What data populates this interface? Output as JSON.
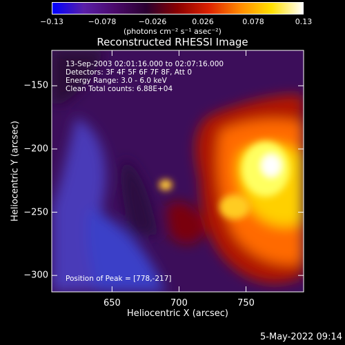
{
  "chart_data": {
    "type": "heatmap",
    "title": "Reconstructed RHESSI Image",
    "xlabel": "Heliocentric X (arcsec)",
    "ylabel": "Heliocentric Y (arcsec)",
    "xlim": [
      605,
      793
    ],
    "ylim": [
      -313,
      -122
    ],
    "xticks": [
      "650",
      "700",
      "750"
    ],
    "xtick_values": [
      650,
      700,
      750
    ],
    "yticks": [
      "-150",
      "-200",
      "-250",
      "-300"
    ],
    "ytick_values": [
      -150,
      -200,
      -250,
      -300
    ],
    "colorbar": {
      "min": -0.13,
      "max": 0.13,
      "tick_labels": [
        "-0.13",
        "-0.078",
        "-0.026",
        "0.026",
        "0.078",
        "0.13"
      ],
      "tick_values": [
        -0.13,
        -0.078,
        -0.026,
        0.026,
        0.078,
        0.13
      ],
      "label": "(photons cm⁻² s⁻¹ asec⁻²)",
      "colors": [
        "#0000ff",
        "#5a1fa8",
        "#4a0a6a",
        "#2a0030",
        "#8a0000",
        "#dd2200",
        "#ff8a00",
        "#ffe000",
        "#ffffff"
      ]
    },
    "annotations": {
      "time": "13-Sep-2003 02:01:16.000 to 02:07:16.000",
      "detectors": "Detectors: 3F 4F 5F 6F 7F 8F, Att 0",
      "energy": "Energy Range: 3.0 - 6.0 keV",
      "clean": "Clean     Total counts: 6.88E+04",
      "peak": "Position of Peak = [778,-217]"
    },
    "peak": [
      778,
      -217
    ]
  },
  "timestamp": "5-May-2022 09:14"
}
